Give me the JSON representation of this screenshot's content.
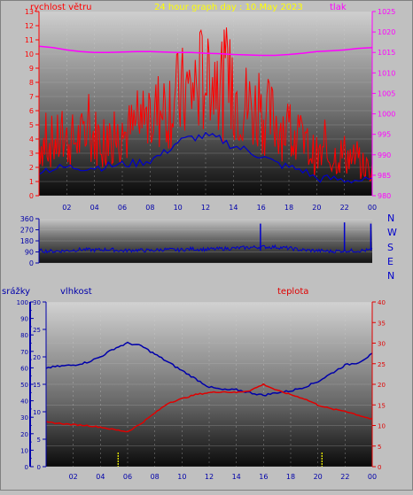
{
  "header": {
    "left_label": "rychlost větru",
    "title": "24 hour graph day : 10.May 2023",
    "right_label": "tlak"
  },
  "compass": [
    "N",
    "W",
    "S",
    "E",
    "N"
  ],
  "bottom_labels": {
    "rain": "srážky",
    "humidity": "vlhkost",
    "temperature": "teplota"
  },
  "colors": {
    "wind_speed": "#ff0000",
    "wind_avg": "#0000cc",
    "pressure": "#ff00ff",
    "direction": "#0000cc",
    "humidity": "#0000aa",
    "temperature": "#e00000",
    "rain": "#ffff00",
    "title": "#ffff00",
    "left_axis": "#ff0000",
    "right_axis": "#ff00ff",
    "blue_axis": "#0000aa"
  },
  "chart_data": [
    {
      "type": "line",
      "name": "wind-pressure",
      "x_ticks": [
        "02",
        "04",
        "06",
        "08",
        "10",
        "12",
        "14",
        "16",
        "18",
        "20",
        "22",
        "00"
      ],
      "y_left_ticks": [
        "0",
        "1",
        "2",
        "3",
        "4",
        "5",
        "6",
        "7",
        "8",
        "9",
        "10",
        "11",
        "12",
        "13"
      ],
      "y_right_ticks": [
        "980",
        "985",
        "990",
        "995",
        "1000",
        "1005",
        "1010",
        "1015",
        "1020",
        "1025"
      ],
      "ylim_left": [
        0,
        13
      ],
      "ylim_right": [
        980,
        1025
      ],
      "x_hours": [
        0,
        1,
        2,
        3,
        4,
        5,
        6,
        7,
        8,
        9,
        10,
        11,
        12,
        13,
        14,
        15,
        16,
        17,
        18,
        19,
        20,
        21,
        22,
        23,
        24
      ],
      "series": [
        {
          "name": "rychlost větru",
          "axis": "left",
          "values": [
            3.5,
            3.6,
            3.6,
            3.8,
            4.0,
            3.7,
            4.0,
            4.5,
            5.2,
            6.0,
            6.5,
            7.0,
            8.0,
            7.5,
            7.0,
            6.0,
            5.5,
            5.0,
            4.5,
            3.5,
            2.6,
            2.6,
            2.8,
            2.2,
            1.6
          ]
        },
        {
          "name": "wind average",
          "axis": "left",
          "values": [
            1.8,
            1.9,
            2.0,
            2.0,
            2.0,
            2.1,
            2.2,
            2.3,
            2.5,
            3.0,
            3.8,
            4.1,
            4.2,
            4.0,
            3.5,
            3.2,
            2.8,
            2.3,
            2.0,
            1.8,
            1.2,
            1.2,
            1.1,
            1.1,
            1.0
          ]
        },
        {
          "name": "tlak",
          "axis": "right",
          "values": [
            1016.5,
            1016.2,
            1015.6,
            1015.2,
            1015.0,
            1015.0,
            1015.1,
            1015.2,
            1015.2,
            1015.1,
            1015.0,
            1015.0,
            1014.8,
            1014.7,
            1014.5,
            1014.4,
            1014.3,
            1014.3,
            1014.5,
            1014.8,
            1015.2,
            1015.4,
            1015.6,
            1016.0,
            1016.2
          ]
        }
      ]
    },
    {
      "type": "line",
      "name": "wind-direction",
      "y_ticks": [
        "360",
        "270",
        "180",
        "90",
        "0"
      ],
      "ylim": [
        0,
        360
      ],
      "x_hours": [
        0,
        1,
        2,
        3,
        4,
        5,
        6,
        7,
        8,
        9,
        10,
        11,
        12,
        13,
        14,
        15,
        16,
        17,
        18,
        19,
        20,
        21,
        22,
        23,
        24
      ],
      "series": [
        {
          "name": "direction",
          "values": [
            100,
            95,
            100,
            110,
            105,
            110,
            100,
            105,
            100,
            110,
            105,
            115,
            110,
            115,
            120,
            125,
            130,
            130,
            120,
            105,
            100,
            95,
            100,
            100,
            105
          ]
        }
      ],
      "spikes": [
        {
          "x": 15.95,
          "value": 320
        },
        {
          "x": 22.0,
          "value": 330
        },
        {
          "x": 23.9,
          "value": 320
        }
      ]
    },
    {
      "type": "line",
      "name": "humidity-temperature",
      "x_ticks": [
        "02",
        "04",
        "06",
        "08",
        "10",
        "12",
        "14",
        "16",
        "18",
        "20",
        "22",
        "00"
      ],
      "y_rain_ticks": [
        "0",
        "10",
        "20",
        "30",
        "40",
        "50",
        "60",
        "70",
        "80",
        "90",
        "100"
      ],
      "y_humidity_ticks": [
        "0",
        "5",
        "10",
        "15",
        "20",
        "25",
        "30"
      ],
      "y_temp_ticks": [
        "0",
        "5",
        "10",
        "15",
        "20",
        "25",
        "30",
        "35",
        "40"
      ],
      "ylim_rain": [
        0,
        100
      ],
      "ylim_humidity": [
        0,
        30
      ],
      "ylim_temperature": [
        0,
        40
      ],
      "x_hours": [
        0,
        1,
        2,
        3,
        4,
        5,
        6,
        7,
        8,
        9,
        10,
        11,
        12,
        13,
        14,
        15,
        16,
        17,
        18,
        19,
        20,
        21,
        22,
        23,
        24
      ],
      "series": [
        {
          "name": "vlhkost",
          "axis": "humidity",
          "values": [
            18.0,
            18.3,
            18.5,
            19.0,
            20.0,
            21.5,
            22.5,
            22.0,
            20.5,
            19.0,
            17.5,
            16.0,
            14.5,
            14.0,
            14.0,
            13.5,
            13.0,
            13.5,
            13.8,
            14.5,
            15.5,
            17.0,
            18.5,
            19.0,
            20.5
          ]
        },
        {
          "name": "teplota",
          "axis": "temperature",
          "values": [
            10.8,
            10.5,
            10.2,
            10.0,
            9.6,
            9.0,
            8.5,
            10.5,
            13.0,
            15.5,
            16.5,
            17.5,
            18.0,
            18.2,
            18.0,
            18.5,
            20.0,
            18.5,
            17.5,
            16.5,
            15.0,
            14.0,
            13.5,
            12.5,
            11.5
          ]
        }
      ],
      "rain_markers": [
        5.3,
        20.3
      ]
    }
  ]
}
